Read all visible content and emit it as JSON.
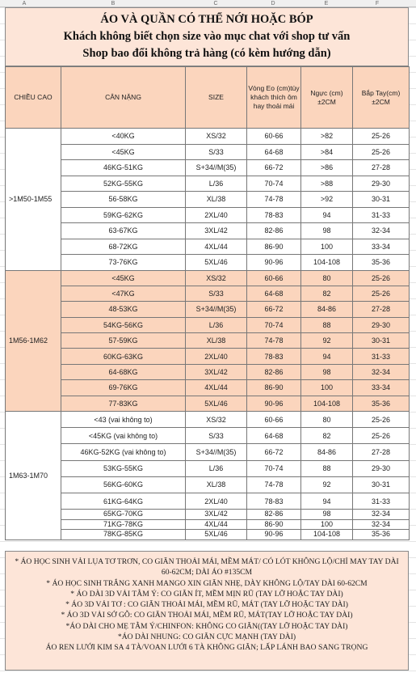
{
  "sheet": {
    "columns": [
      "A",
      "B",
      "C",
      "D",
      "E",
      "F"
    ]
  },
  "title": {
    "line1": "ÁO VÀ QUẦN CÓ THỂ NỚI HOẶC BÓP",
    "line2": "Khách không biết chọn size vào mục chat với shop tư vấn",
    "line3": "Shop bao đổi không trả hàng (có kèm hướng dẫn)"
  },
  "table": {
    "headers": {
      "height": "CHIỀU CAO",
      "weight": "CÂN NẶNG",
      "size": "SIZE",
      "waist": "Vòng Eo (cm)tùy khách thích ôm hay thoải mái",
      "chest": "Ngực (cm) ±2CM",
      "arm": "Bắp Tay(cm) ±2CM"
    },
    "groups": [
      {
        "height": ">1M50-1M55",
        "rows": [
          {
            "weight": "<40KG",
            "size": "XS/32",
            "waist": "60-66",
            "chest": ">82",
            "arm": "25-26"
          },
          {
            "weight": "<45KG",
            "size": "S/33",
            "waist": "64-68",
            "chest": ">84",
            "arm": "25-26"
          },
          {
            "weight": "46KG-51KG",
            "size": "S+34//M(35)",
            "waist": "66-72",
            "chest": ">86",
            "arm": "27-28"
          },
          {
            "weight": "52KG-55KG",
            "size": "L/36",
            "waist": "70-74",
            "chest": ">88",
            "arm": "29-30"
          },
          {
            "weight": "56-58KG",
            "size": "XL/38",
            "waist": "74-78",
            "chest": ">92",
            "arm": "30-31"
          },
          {
            "weight": "59KG-62KG",
            "size": "2XL/40",
            "waist": "78-83",
            "chest": "94",
            "arm": "31-33"
          },
          {
            "weight": "63-67KG",
            "size": "3XL/42",
            "waist": "82-86",
            "chest": "98",
            "arm": "32-34"
          },
          {
            "weight": "68-72KG",
            "size": "4XL/44",
            "waist": "86-90",
            "chest": "100",
            "arm": "33-34"
          },
          {
            "weight": "73-76KG",
            "size": "5XL/46",
            "waist": "90-96",
            "chest": "104-108",
            "arm": "35-36"
          }
        ]
      },
      {
        "height": "1M56-1M62",
        "rows": [
          {
            "weight": "<45KG",
            "size": "XS/32",
            "waist": "60-66",
            "chest": "80",
            "arm": "25-26"
          },
          {
            "weight": "<47KG",
            "size": "S/33",
            "waist": "64-68",
            "chest": "82",
            "arm": "25-26"
          },
          {
            "weight": "48-53KG",
            "size": "S+34//M(35)",
            "waist": "66-72",
            "chest": "84-86",
            "arm": "27-28"
          },
          {
            "weight": "54KG-56KG",
            "size": "L/36",
            "waist": "70-74",
            "chest": "88",
            "arm": "29-30"
          },
          {
            "weight": "57-59KG",
            "size": "XL/38",
            "waist": "74-78",
            "chest": "92",
            "arm": "30-31"
          },
          {
            "weight": "60KG-63KG",
            "size": "2XL/40",
            "waist": "78-83",
            "chest": "94",
            "arm": "31-33"
          },
          {
            "weight": "64-68KG",
            "size": "3XL/42",
            "waist": "82-86",
            "chest": "98",
            "arm": "32-34"
          },
          {
            "weight": "69-76KG",
            "size": "4XL/44",
            "waist": "86-90",
            "chest": "100",
            "arm": "33-34"
          },
          {
            "weight": "77-83KG",
            "size": "5XL/46",
            "waist": "90-96",
            "chest": "104-108",
            "arm": "35-36"
          }
        ]
      },
      {
        "height": "1M63-1M70",
        "rows": [
          {
            "weight": "<43 (vai không to)",
            "size": "XS/32",
            "waist": "60-66",
            "chest": "80",
            "arm": "25-26"
          },
          {
            "weight": "<45KG (vai không to)",
            "size": "S/33",
            "waist": "64-68",
            "chest": "82",
            "arm": "25-26"
          },
          {
            "weight": "46KG-52KG (vai không to)",
            "size": "S+34//M(35)",
            "waist": "66-72",
            "chest": "84-86",
            "arm": "27-28"
          },
          {
            "weight": "53KG-55KG",
            "size": "L/36",
            "waist": "70-74",
            "chest": "88",
            "arm": "29-30"
          },
          {
            "weight": "56KG-60KG",
            "size": "XL/38",
            "waist": "74-78",
            "chest": "92",
            "arm": "30-31"
          },
          {
            "weight": "61KG-64KG",
            "size": "2XL/40",
            "waist": "78-83",
            "chest": "94",
            "arm": "31-33"
          },
          {
            "weight": "65KG-70KG",
            "size": "3XL/42",
            "waist": "82-86",
            "chest": "98",
            "arm": "32-34"
          },
          {
            "weight": "71KG-78KG",
            "size": "4XL/44",
            "waist": "86-90",
            "chest": "100",
            "arm": "32-34"
          },
          {
            "weight": "78KG-85KG",
            "size": "5XL/46",
            "waist": "90-96",
            "chest": "104-108",
            "arm": "35-36"
          }
        ]
      }
    ]
  },
  "notes": {
    "line1": "* ÁO HỌC SINH VẢI LỤA TƠ TRƠN, CO GIÃN THOẢI MÁI, MỀM MÁT/ CÓ LÓT KHÔNG LỘ/CHỈ MAY TAY DÀI 60-62CM; DÀI ÁO #135CM",
    "line2": "* ÁO HỌC SINH TRẮNG XANH MANGO XIN GIÃN NHẸ, DÀY KHÔNG LỘ/TAY DÀI 60-62CM",
    "line3": "* ÁO DÀI 3D VẢI TẰM Ý:  CO GIÃN ÍT, MỀM MỊN RŨ (TAY LỠ HOẶC TAY DÀI)",
    "line4": "* ÁO 3D VẢI TƠ : CO GIÃN THOẢI MÁI, MỀM RŨ, MÁT (TAY LỠ HOẶC TAY DÀI)",
    "line5": "* ÁO 3D VẢI SỚ GỖ: CO GIÃN THOẢI MÁI, MỀM RŨ, MÁT(TAY LỠ HOẶC TAY DÀI)",
    "line6": "*ÁO DÀI CHO MẸ TẰM Ý/CHINFON: KHÔNG CO GIÃN((TAY LỠ HOẶC TAY DÀI)",
    "line7": "*ÁO DÀI NHUNG: CO GIÃN CỰC MẠNH (TAY DÀI)",
    "line8": "ÁO REN LƯỚI KIM SA 4 TÀ/VOAN LƯỚI 6 TÀ KHÔNG GIÃN; LẤP LÁNH BAO SANG TRỌNG"
  }
}
